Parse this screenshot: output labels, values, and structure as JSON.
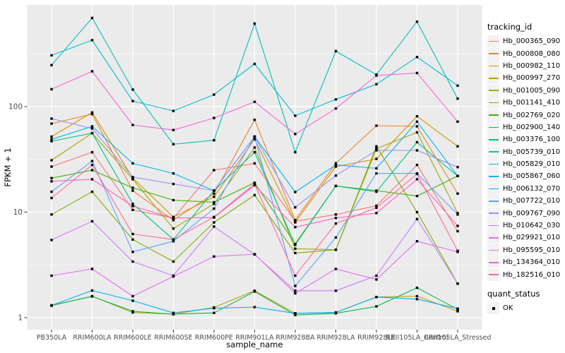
{
  "figure": {
    "background": "#FFFFFF",
    "panel_color": "#EBEBEB",
    "grid_color": "#FFFFFF",
    "tick_color": "#333333",
    "tick_label_color": "#4D4D4D",
    "axis_title_color": "#000000",
    "legend_key_background": "#F2F2F2"
  },
  "legend": {
    "tracking_title": "tracking_id",
    "quant_title": "quant_status",
    "quant_items": [
      {
        "label": "OK",
        "shape": "filled-square",
        "color": "#000000"
      }
    ]
  },
  "chart_data": {
    "type": "line",
    "title": "",
    "xlabel": "sample_name",
    "ylabel": "FPKM + 1",
    "y_scale": "log10",
    "y_ticks": [
      1,
      10,
      100
    ],
    "y_minor_gridlines": [
      3.162,
      31.62,
      316.2
    ],
    "ylim": [
      0.88,
      950
    ],
    "grid": "on",
    "legend_position": "right",
    "point_shape": "filled-square",
    "point_color": "#000000",
    "categories": [
      "PB350LA",
      "RRIM600LA",
      "RRIM600LE",
      "RRIM600SE",
      "RRIM600PE",
      "RRIM901LA",
      "RRIM928BA",
      "RRIM928LA",
      "RRIM928LE",
      "RRII105LA_Control",
      "RRII105LA_Stressed"
    ],
    "series": [
      {
        "name": "Hb_000365_090",
        "color": "#F8766D",
        "values": [
          27,
          37,
          10.5,
          8.8,
          25,
          29,
          8.2,
          9.5,
          11.5,
          28,
          6.6
        ]
      },
      {
        "name": "Hb_000808_080",
        "color": "#EA8331",
        "values": [
          69,
          85,
          16,
          8.4,
          15,
          75,
          8.4,
          29,
          66,
          65,
          15
        ]
      },
      {
        "name": "Hb_000982_110",
        "color": "#D89000",
        "values": [
          52,
          88,
          21,
          9,
          14,
          49,
          8,
          27,
          32,
          81,
          42
        ]
      },
      {
        "name": "Hb_000997_270",
        "color": "#C09B00",
        "values": [
          1.3,
          1.6,
          1.12,
          1.08,
          1.25,
          1.8,
          1.1,
          1.12,
          1.57,
          1.6,
          1.15
        ]
      },
      {
        "name": "Hb_001005_090",
        "color": "#A3A500",
        "values": [
          31,
          56,
          20.5,
          7,
          12,
          41,
          4.5,
          4.4,
          40,
          57,
          9.8
        ]
      },
      {
        "name": "Hb_001141_410",
        "color": "#7CAE00",
        "values": [
          9.5,
          15.6,
          5.5,
          3.4,
          8,
          14.5,
          4.1,
          4.4,
          42,
          10,
          2.1
        ]
      },
      {
        "name": "Hb_002769_020",
        "color": "#39B600",
        "values": [
          21,
          25,
          17,
          13,
          12.4,
          19,
          5,
          17.7,
          16,
          14.2,
          22
        ]
      },
      {
        "name": "Hb_002900_140",
        "color": "#00BB4E",
        "values": [
          1.31,
          1.59,
          1.15,
          1.08,
          1.11,
          1.77,
          1.06,
          1.1,
          1.28,
          1.92,
          1.2
        ]
      },
      {
        "name": "Hb_003376_100",
        "color": "#00C087",
        "values": [
          47,
          56,
          12,
          5.5,
          16,
          37,
          4.9,
          17.7,
          15.6,
          46,
          22
        ]
      },
      {
        "name": "Hb_005739_010",
        "color": "#00C0B2",
        "values": [
          247,
          692,
          145,
          44,
          48,
          612,
          37,
          335,
          201,
          638,
          119
        ]
      },
      {
        "name": "Hb_005829_010",
        "color": "#00BDD2",
        "values": [
          306,
          426,
          113,
          91,
          130,
          254,
          82,
          117,
          163,
          295,
          158
        ]
      },
      {
        "name": "Hb_005867_060",
        "color": "#00B5EC",
        "values": [
          49,
          65,
          29,
          23.3,
          16,
          52,
          15.5,
          28,
          26,
          72,
          22
        ]
      },
      {
        "name": "Hb_006132_070",
        "color": "#00ACFC",
        "values": [
          1.31,
          1.81,
          1.45,
          1.11,
          1.23,
          1.26,
          1.1,
          1.12,
          1.57,
          1.5,
          1.22
        ]
      },
      {
        "name": "Hb_007722_010",
        "color": "#5CA3FF",
        "values": [
          15.6,
          30.5,
          4.2,
          5.3,
          10.8,
          52,
          2.0,
          5.75,
          23.3,
          23.3,
          9.5
        ]
      },
      {
        "name": "Hb_009767_090",
        "color": "#9590FF",
        "values": [
          77,
          62,
          21.5,
          18.5,
          16,
          52,
          11.1,
          22.2,
          38.5,
          38.5,
          26.7
        ]
      },
      {
        "name": "Hb_010642_030",
        "color": "#C77CFF",
        "values": [
          5.45,
          8.2,
          3.4,
          2.5,
          7.3,
          3.97,
          1.8,
          1.8,
          2.5,
          8.6,
          2.1
        ]
      },
      {
        "name": "Hb_029921_010",
        "color": "#E76BF3",
        "values": [
          2.5,
          2.9,
          1.6,
          2.46,
          3.8,
          4.0,
          1.7,
          2.9,
          2.3,
          5.3,
          4.2
        ]
      },
      {
        "name": "Hb_095595_010",
        "color": "#FA62DB",
        "values": [
          146,
          216,
          67,
          60,
          78,
          111,
          55,
          96,
          197,
          208,
          72
        ]
      },
      {
        "name": "Hb_134364_010",
        "color": "#FF61C7",
        "values": [
          19.6,
          20.5,
          11.4,
          8.8,
          8.9,
          18,
          7.2,
          8.8,
          9.8,
          20.5,
          7.4
        ]
      },
      {
        "name": "Hb_182516_010",
        "color": "#FF689E",
        "values": [
          13.6,
          28,
          6.2,
          5.5,
          9,
          18.5,
          2.5,
          7.8,
          11,
          23,
          4.3
        ]
      }
    ],
    "quant_status": "OK for all points"
  }
}
